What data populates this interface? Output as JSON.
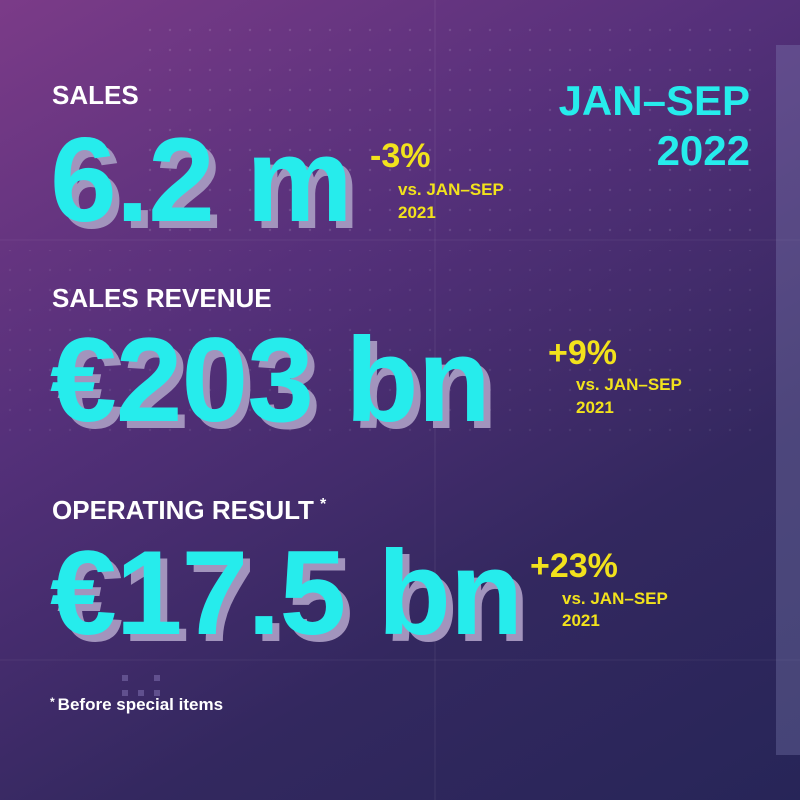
{
  "period": {
    "line1": "JAN–SEP",
    "line2": "2022"
  },
  "metrics": [
    {
      "label": "SALES",
      "value": "6.2 m",
      "change": "-3%",
      "comparison": [
        "vs. JAN–SEP",
        "2021"
      ]
    },
    {
      "label": "SALES REVENUE",
      "value": "€203 bn",
      "change": "+9%",
      "comparison": [
        "vs. JAN–SEP",
        "2021"
      ]
    },
    {
      "label": "OPERATING RESULT",
      "marker": "*",
      "value": "€17.5 bn",
      "change": "+23%",
      "comparison": [
        "vs. JAN–SEP",
        "2021"
      ]
    }
  ],
  "footnote": {
    "marker": "*",
    "text": "Before special items"
  }
}
